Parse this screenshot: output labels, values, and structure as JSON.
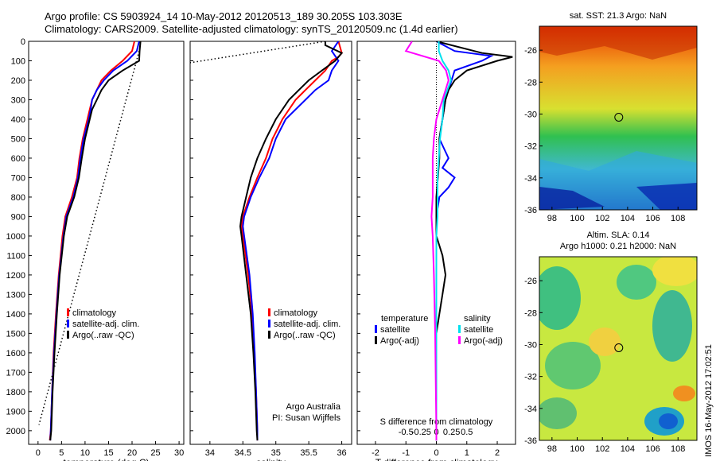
{
  "header": {
    "title_line1": "Argo profile: CS 5903924_14 10-May-2012 20120513_189 30.205S 103.303E",
    "title_line2": "Climatology: CARS2009. Satellite-adjusted climatology: synTS_20120509.nc (1.4d earlier)"
  },
  "chart_data": [
    {
      "type": "line",
      "id": "temperature",
      "xlabel": "temperature (deg C)",
      "ylabel": "",
      "xlim": [
        -2,
        31
      ],
      "ylim": [
        2070,
        0
      ],
      "xticks": [
        0,
        5,
        10,
        15,
        20,
        25,
        30
      ],
      "yticks": [
        0,
        100,
        200,
        300,
        400,
        500,
        600,
        700,
        800,
        900,
        1000,
        1100,
        1200,
        1300,
        1400,
        1500,
        1600,
        1700,
        1800,
        1900,
        2000
      ],
      "legend": [
        "climatology",
        "satellite-adj. clim.",
        "Argo(..raw -QC)"
      ],
      "legend_placement": "lower-right",
      "series": [
        {
          "name": "climatology",
          "color": "#ff0000",
          "y": [
            0,
            50,
            100,
            150,
            200,
            250,
            300,
            350,
            400,
            500,
            600,
            700,
            800,
            900,
            1000,
            1200,
            1400,
            1600,
            1800,
            2000,
            2050
          ],
          "x": [
            20.5,
            20,
            18,
            15.5,
            13.5,
            12.5,
            11.5,
            11,
            10.5,
            9.5,
            8.8,
            8.3,
            7.2,
            5.8,
            5.2,
            4.4,
            3.8,
            3.3,
            3.0,
            2.7,
            2.5
          ]
        },
        {
          "name": "satellite-adj. clim.",
          "color": "#0000ff",
          "y": [
            0,
            50,
            100,
            150,
            200,
            250,
            300,
            350,
            400,
            500,
            600,
            700,
            800,
            900,
            1000,
            1200,
            1400,
            1600,
            1800,
            2000,
            2050
          ],
          "x": [
            21.5,
            21,
            19,
            16,
            14,
            12.5,
            11.5,
            11.2,
            10.8,
            9.7,
            9.0,
            8.5,
            7.5,
            6.0,
            5.4,
            4.5,
            3.9,
            3.4,
            3.0,
            2.7,
            2.6
          ]
        },
        {
          "name": "Argo(..raw -QC)",
          "color": "#000000",
          "y": [
            0,
            50,
            100,
            150,
            200,
            250,
            300,
            350,
            400,
            500,
            600,
            700,
            800,
            900,
            1000,
            1200,
            1400,
            1600,
            1800,
            2000,
            2050
          ],
          "x": [
            21.8,
            21.6,
            21.5,
            18,
            15,
            13.5,
            12.5,
            11.5,
            11,
            10,
            9.3,
            8.7,
            7.7,
            6.2,
            5.5,
            4.6,
            4.0,
            3.5,
            3.1,
            2.8,
            2.6
          ]
        },
        {
          "name": "raw",
          "color": "#000000",
          "dotted": true,
          "y": [
            50,
            1970
          ],
          "x": [
            21.5,
            0.2
          ]
        }
      ]
    },
    {
      "type": "line",
      "id": "salinity",
      "xlabel": "salinity",
      "ylabel": "",
      "xlim": [
        33.7,
        36.15
      ],
      "ylim": [
        2070,
        0
      ],
      "xticks": [
        34,
        34.5,
        35,
        35.5,
        36
      ],
      "legend": [
        "climatology",
        "satellite-adj. clim.",
        "Argo(..raw -QC)"
      ],
      "legend_placement": "lower-right",
      "annotation": [
        "Argo Australia",
        "PI: Susan Wijffels"
      ],
      "series": [
        {
          "name": "climatology",
          "color": "#ff0000",
          "y": [
            0,
            60,
            80,
            100,
            150,
            200,
            250,
            300,
            400,
            500,
            600,
            700,
            800,
            900,
            950,
            1000,
            1200,
            1400,
            1600,
            1800,
            2000,
            2050
          ],
          "x": [
            35.95,
            36.0,
            35.95,
            35.85,
            35.75,
            35.6,
            35.45,
            35.3,
            35.1,
            34.95,
            34.85,
            34.72,
            34.6,
            34.5,
            34.48,
            34.5,
            34.58,
            34.64,
            34.67,
            34.7,
            34.72,
            34.72
          ]
        },
        {
          "name": "satellite-adj. clim.",
          "color": "#0000ff",
          "y": [
            0,
            50,
            100,
            150,
            200,
            250,
            300,
            400,
            500,
            600,
            700,
            800,
            900,
            950,
            1000,
            1200,
            1400,
            1600,
            1800,
            2000,
            2050
          ],
          "x": [
            35.95,
            35.85,
            35.95,
            35.85,
            35.8,
            35.6,
            35.45,
            35.15,
            35.0,
            34.9,
            34.75,
            34.62,
            34.52,
            34.5,
            34.52,
            34.6,
            34.65,
            34.68,
            34.7,
            34.72,
            34.72
          ]
        },
        {
          "name": "Argo(..raw -QC)",
          "color": "#000000",
          "y": [
            0,
            20,
            60,
            100,
            150,
            200,
            250,
            300,
            400,
            500,
            600,
            700,
            800,
            900,
            950,
            1000,
            1200,
            1400,
            1600,
            1800,
            2000,
            2050
          ],
          "x": [
            35.75,
            35.75,
            36.0,
            35.9,
            35.7,
            35.5,
            35.35,
            35.2,
            35.0,
            34.85,
            34.72,
            34.62,
            34.55,
            34.48,
            34.46,
            34.48,
            34.55,
            34.62,
            34.66,
            34.69,
            34.71,
            34.72
          ]
        },
        {
          "name": "raw",
          "color": "#000000",
          "dotted": true,
          "y": [
            0,
            110
          ],
          "x": [
            35.75,
            33.7
          ]
        }
      ]
    },
    {
      "type": "line",
      "id": "difference",
      "xlabel": "T difference from climatology",
      "xlabel_top": "S difference from climatology",
      "ylabel": "",
      "xlim": [
        -2.6,
        2.6
      ],
      "ylim": [
        2070,
        0
      ],
      "xticks": [
        -2,
        -1,
        0,
        1,
        2
      ],
      "xticks_top": [
        -0.5,
        -0.25,
        0,
        0.25,
        0.5
      ],
      "legend_temperature_heading": "temperature",
      "legend_salinity_heading": "salinity",
      "legend": [
        "satellite",
        "Argo(-adj)",
        "satellite",
        "Argo(-adj)"
      ],
      "legend_placement": "lower-center",
      "series": [
        {
          "name": "T satellite",
          "color": "#0000ff",
          "y": [
            0,
            50,
            75,
            100,
            150,
            200,
            250,
            300,
            400,
            500,
            600,
            650,
            700,
            750,
            800,
            900,
            1000,
            1200,
            1500,
            2000,
            2050
          ],
          "x": [
            0,
            0.6,
            1.8,
            1.5,
            0.6,
            0.5,
            0.4,
            0.3,
            0.2,
            0.1,
            0.4,
            0.2,
            0.6,
            0.4,
            0.1,
            0,
            0,
            0,
            0,
            0,
            0
          ]
        },
        {
          "name": "T Argo(-adj)",
          "color": "#000000",
          "y": [
            0,
            60,
            80,
            100,
            150,
            200,
            250,
            300,
            400,
            500,
            600,
            800,
            1000,
            1100,
            1200,
            1300,
            1400,
            1500,
            2000,
            2050
          ],
          "x": [
            0,
            1.5,
            2.5,
            2.0,
            1.0,
            0.6,
            0.4,
            0.3,
            0.2,
            0.1,
            0.1,
            0,
            0,
            0.2,
            0.3,
            0.2,
            0.1,
            0,
            0,
            0
          ]
        },
        {
          "name": "S satellite",
          "color": "#00e0ee",
          "y": [
            0,
            50,
            100,
            150,
            200,
            300,
            400,
            500,
            600,
            700,
            800,
            900,
            1000,
            1200,
            1500,
            2000,
            2050
          ],
          "x": [
            0.02,
            0.02,
            0.05,
            0.1,
            0.12,
            0.06,
            0.05,
            0.03,
            0.02,
            0.01,
            0.01,
            0.01,
            0,
            0,
            0,
            0,
            0
          ]
        },
        {
          "name": "S Argo(-adj)",
          "color": "#ff00ff",
          "y": [
            0,
            50,
            100,
            150,
            200,
            300,
            400,
            500,
            600,
            700,
            800,
            900,
            1000,
            1200,
            1500,
            2000,
            2050
          ],
          "x": [
            -0.2,
            -0.25,
            0.02,
            0.08,
            0.1,
            0.05,
            0.0,
            -0.02,
            -0.03,
            -0.03,
            -0.03,
            -0.04,
            -0.03,
            -0.02,
            -0.01,
            0,
            0
          ]
        }
      ]
    }
  ],
  "maps": {
    "sst": {
      "title": "sat. SST: 21.3 Argo: NaN",
      "xticks": [
        98,
        100,
        102,
        104,
        106,
        108
      ],
      "yticks": [
        -26,
        -28,
        -30,
        -32,
        -34,
        -36
      ],
      "lon_range": [
        97,
        109.5
      ],
      "lat_range": [
        -36,
        -24.5
      ],
      "marker": [
        103.3,
        -30.2
      ]
    },
    "sla": {
      "title1": "Altim. SLA: 0.14",
      "title2": "Argo h1000: 0.21 h2000: NaN",
      "xticks": [
        98,
        100,
        102,
        104,
        106,
        108
      ],
      "yticks": [
        -26,
        -28,
        -30,
        -32,
        -34,
        -36
      ],
      "lon_range": [
        97,
        109.5
      ],
      "lat_range": [
        -36,
        -24.5
      ],
      "marker": [
        103.3,
        -30.2
      ]
    }
  },
  "footer": {
    "stamp": "IMOS 16-May-2012 17:02:51"
  }
}
